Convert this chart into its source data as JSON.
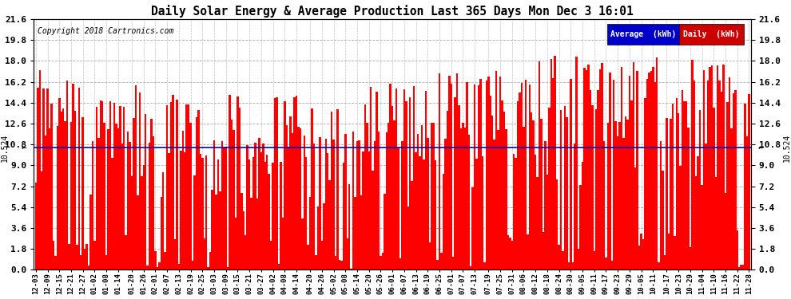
{
  "title": "Daily Solar Energy & Average Production Last 365 Days Mon Dec 3 16:01",
  "copyright": "Copyright 2018 Cartronics.com",
  "average_value": 10.524,
  "average_label": "10.524",
  "bar_color": "#FF0000",
  "average_line_color": "#0000CC",
  "ylim": [
    0,
    21.6
  ],
  "yticks": [
    0.0,
    1.8,
    3.6,
    5.4,
    7.2,
    9.0,
    10.8,
    12.6,
    14.4,
    16.2,
    18.0,
    19.8,
    21.6
  ],
  "background_color": "#FFFFFF",
  "plot_bg_color": "#FFFFFF",
  "grid_color": "#999999",
  "legend_avg_bg": "#0000CC",
  "legend_daily_bg": "#CC0000",
  "legend_text_color": "#FFFFFF",
  "x_labels": [
    "12-03",
    "12-09",
    "12-15",
    "12-21",
    "12-27",
    "01-02",
    "01-08",
    "01-14",
    "01-20",
    "01-26",
    "02-01",
    "02-07",
    "02-13",
    "02-19",
    "02-25",
    "03-03",
    "03-09",
    "03-15",
    "03-21",
    "03-27",
    "04-02",
    "04-08",
    "04-14",
    "04-20",
    "04-26",
    "05-02",
    "05-08",
    "05-14",
    "05-20",
    "05-26",
    "06-01",
    "06-07",
    "06-13",
    "06-19",
    "06-25",
    "07-01",
    "07-07",
    "07-13",
    "07-19",
    "07-25",
    "07-31",
    "08-06",
    "08-12",
    "08-18",
    "08-24",
    "08-30",
    "09-05",
    "09-11",
    "09-17",
    "09-23",
    "09-29",
    "10-05",
    "10-11",
    "10-17",
    "10-23",
    "10-29",
    "11-04",
    "11-10",
    "11-16",
    "11-22",
    "11-28"
  ],
  "font_family": "monospace"
}
